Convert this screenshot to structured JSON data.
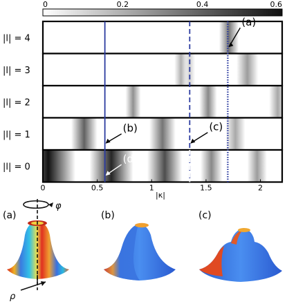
{
  "chart_data": {
    "type": "heatmap",
    "colorbar": {
      "range": [
        0,
        0.6
      ],
      "ticks": [
        "0",
        "0.2",
        "0.4",
        "0.6"
      ],
      "colormap": "white-to-black"
    },
    "xaxis": {
      "label": "|κ|",
      "range": [
        0,
        2.2
      ],
      "ticks": [
        "0",
        "0.5",
        "1",
        "1.5",
        "2"
      ]
    },
    "rows": [
      {
        "label": "|l| = 4",
        "l": 4,
        "bands": [
          {
            "center": 1.71,
            "width": 0.09,
            "value": 0.35
          }
        ]
      },
      {
        "label": "|l| = 3",
        "l": 3,
        "bands": [
          {
            "center": 1.27,
            "width": 0.06,
            "value": 0.2
          },
          {
            "center": 1.35,
            "width": 0.05,
            "value": 0.12
          },
          {
            "center": 1.88,
            "width": 0.1,
            "value": 0.25
          }
        ]
      },
      {
        "label": "|l| = 2",
        "l": 2,
        "bands": [
          {
            "center": 0.83,
            "width": 0.07,
            "value": 0.28
          },
          {
            "center": 1.52,
            "width": 0.08,
            "value": 0.3
          },
          {
            "center": 2.16,
            "width": 0.08,
            "value": 0.22
          }
        ]
      },
      {
        "label": "|l| = 1",
        "l": 1,
        "bands": [
          {
            "center": 0.38,
            "width": 0.12,
            "value": 0.4
          },
          {
            "center": 1.1,
            "width": 0.12,
            "value": 0.35
          },
          {
            "center": 1.77,
            "width": 0.09,
            "value": 0.22
          }
        ]
      },
      {
        "label": "|l| = 0",
        "l": 0,
        "bands": [
          {
            "center": 0.05,
            "width": 0.25,
            "value": 0.6
          },
          {
            "center": 0.63,
            "width": 0.2,
            "value": 0.55
          },
          {
            "center": 1.12,
            "width": 0.16,
            "value": 0.45
          },
          {
            "center": 1.55,
            "width": 0.1,
            "value": 0.3
          },
          {
            "center": 1.97,
            "width": 0.09,
            "value": 0.25
          }
        ]
      }
    ],
    "markers": [
      {
        "x": 0.57,
        "style": "solid",
        "color": "#2a3a9f"
      },
      {
        "x": 1.35,
        "style": "dashed",
        "color": "#2a3a9f"
      },
      {
        "x": 1.7,
        "style": "dotted",
        "color": "#2a3a9f"
      }
    ],
    "annotations": [
      {
        "label": "(a)",
        "row": 4,
        "x": 1.7
      },
      {
        "label": "(b)",
        "row": 1,
        "x": 0.57
      },
      {
        "label": "(c)",
        "row": 1,
        "x": 1.35
      },
      {
        "label": "(d)",
        "row": 0,
        "x": 0.57
      }
    ]
  },
  "panels": [
    {
      "label": "(a)",
      "name": "panel-a"
    },
    {
      "label": "(b)",
      "name": "panel-b"
    },
    {
      "label": "(c)",
      "name": "panel-c"
    }
  ],
  "symbols": {
    "phi": "φ",
    "rho": "ρ"
  },
  "colors": {
    "marker": "#2a3a9f",
    "surface_blue": "#3a78e0",
    "surface_red": "#e03a20",
    "surface_yellow": "#f0d83a"
  }
}
